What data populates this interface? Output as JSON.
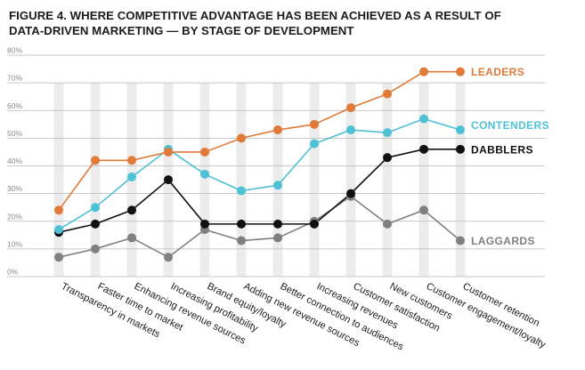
{
  "chart_data": {
    "type": "line",
    "title_lines": [
      "FIGURE 4. WHERE COMPETITIVE ADVANTAGE HAS BEEN ACHIEVED AS A RESULT OF",
      "DATA-DRIVEN MARKETING — BY STAGE OF DEVELOPMENT"
    ],
    "categories": [
      "Transparency in markets",
      "Faster time to market",
      "Enhancing revenue sources",
      "Increasing profitability",
      "Brand equity/loyalty",
      "Adding new revenue sources",
      "Better connection to audiences",
      "Increasing revenues",
      "Customer satisfaction",
      "New customers",
      "Customer engagement/loyalty",
      "Customer retention"
    ],
    "y_ticks": [
      "0%",
      "10%",
      "20%",
      "30%",
      "40%",
      "50%",
      "60%",
      "70%",
      "80%"
    ],
    "ylim": [
      0,
      80
    ],
    "grid": true,
    "series": [
      {
        "name": "LAGGARDS",
        "color": "#808080",
        "values": [
          7,
          10,
          14,
          7,
          17,
          13,
          14,
          20,
          29,
          19,
          24,
          13
        ]
      },
      {
        "name": "DABBLERS",
        "color": "#111111",
        "values": [
          16,
          19,
          24,
          35,
          19,
          19,
          19,
          19,
          30,
          43,
          46,
          46
        ]
      },
      {
        "name": "CONTENDERS",
        "color": "#4fc1d4",
        "values": [
          17,
          25,
          36,
          46,
          37,
          31,
          33,
          48,
          53,
          52,
          57,
          53
        ]
      },
      {
        "name": "LEADERS",
        "color": "#e07a38",
        "values": [
          24,
          42,
          42,
          45,
          45,
          50,
          53,
          55,
          61,
          66,
          74,
          74
        ]
      }
    ],
    "column_band_color": "#ececec",
    "gridline_color": "#b8b8b8"
  }
}
